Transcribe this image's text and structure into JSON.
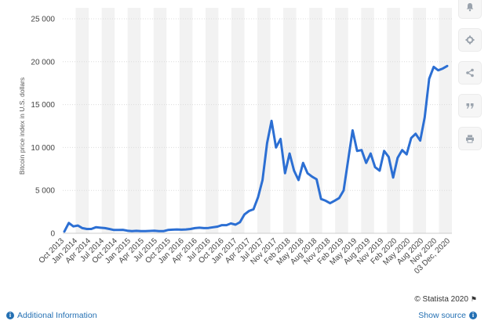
{
  "chart_data": {
    "type": "line",
    "ylabel": "Bitcoin price index in U.S. dollars",
    "ylim": [
      0,
      25000
    ],
    "yticks": [
      0,
      5000,
      10000,
      15000,
      20000,
      25000
    ],
    "ytick_labels": [
      "0",
      "5 000",
      "10 000",
      "15 000",
      "20 000",
      "25 000"
    ],
    "grid": "horizontal lines with alternating vertical bands",
    "x_labels": [
      "Oct 2013",
      "Jan 2014",
      "Apr 2014",
      "Jul 2014",
      "Oct 2014",
      "Jan 2015",
      "Apr 2015",
      "Jul 2015",
      "Oct 2015",
      "Jan 2016",
      "Apr 2016",
      "Jul 2016",
      "Oct 2016",
      "Jan 2017",
      "Apr 2017",
      "Jul 2017",
      "Nov 2017",
      "Feb 2018",
      "May 2018",
      "Aug 2018",
      "Nov 2018",
      "Feb 2019",
      "May 2019",
      "Aug 2019",
      "Nov 2019",
      "Feb 2020",
      "May 2020",
      "Aug 2020",
      "Nov 2020",
      "03 Dec, 2020"
    ],
    "line_color": "#2c6fd3",
    "values": [
      200,
      1200,
      800,
      900,
      600,
      500,
      500,
      700,
      650,
      600,
      500,
      380,
      380,
      400,
      300,
      250,
      280,
      250,
      250,
      270,
      300,
      250,
      250,
      380,
      420,
      450,
      420,
      450,
      500,
      600,
      650,
      600,
      620,
      700,
      780,
      950,
      950,
      1150,
      1000,
      1300,
      2200,
      2600,
      2800,
      4200,
      6200,
      10500,
      13100,
      10000,
      11000,
      7000,
      9300,
      7300,
      6200,
      8200,
      7000,
      6600,
      6300,
      4000,
      3800,
      3500,
      3800,
      4100,
      5000,
      8500,
      12000,
      9600,
      9700,
      8200,
      9300,
      7700,
      7300,
      9600,
      8900,
      6500,
      8800,
      9700,
      9200,
      11100,
      11600,
      10800,
      13500,
      18000,
      19400,
      19000,
      19200,
      19500
    ]
  },
  "toolbar": {
    "items": [
      {
        "icon": "bell-icon"
      },
      {
        "icon": "gear-icon"
      },
      {
        "icon": "share-icon"
      },
      {
        "icon": "quote-icon"
      },
      {
        "icon": "print-icon"
      }
    ]
  },
  "credit": {
    "text": "© Statista 2020",
    "icon": "flag-icon"
  },
  "footer": {
    "additional_info": "Additional Information",
    "show_source": "Show source"
  }
}
